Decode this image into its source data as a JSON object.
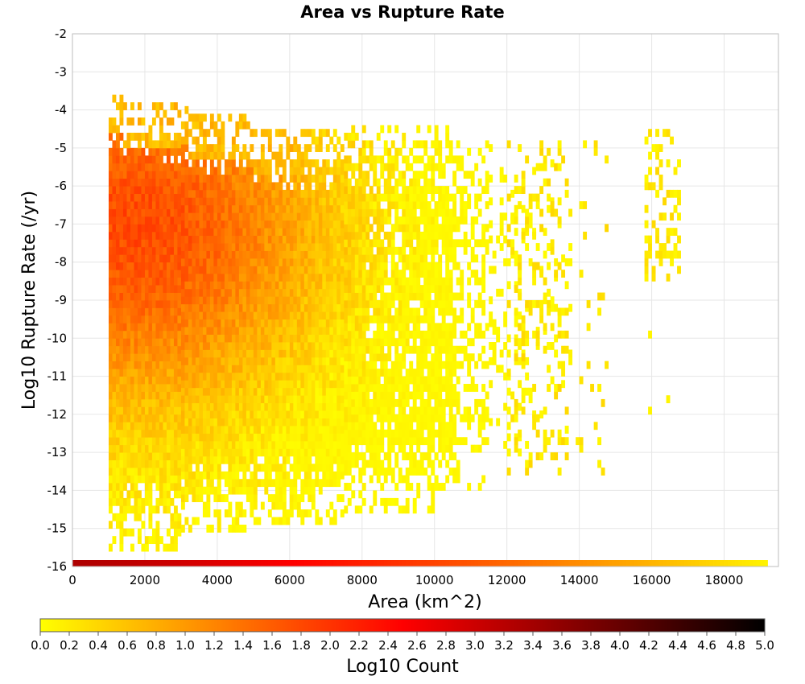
{
  "chart_data": {
    "type": "heatmap",
    "title": "Area vs Rupture Rate",
    "xlabel": "Area (km^2)",
    "ylabel": "Log10 Rupture Rate (/yr)",
    "xlim": [
      0,
      19500
    ],
    "ylim": [
      -16,
      -2
    ],
    "xticks": [
      "0",
      "2000",
      "4000",
      "6000",
      "8000",
      "10000",
      "12000",
      "14000",
      "16000",
      "18000"
    ],
    "yticks": [
      "-2",
      "-3",
      "-4",
      "-5",
      "-6",
      "-7",
      "-8",
      "-9",
      "-10",
      "-11",
      "-12",
      "-13",
      "-14",
      "-15",
      "-16"
    ],
    "grid": true,
    "colorbar": {
      "label": "Log10 Count",
      "range": [
        0,
        5
      ],
      "ticks": [
        "0.0",
        "0.2",
        "0.4",
        "0.6",
        "0.8",
        "1.0",
        "1.2",
        "1.4",
        "1.6",
        "1.8",
        "2.0",
        "2.2",
        "2.4",
        "2.6",
        "2.8",
        "3.0",
        "3.2",
        "3.4",
        "3.6",
        "3.8",
        "4.0",
        "4.2",
        "4.4",
        "4.6",
        "4.8",
        "5.0"
      ],
      "colors": [
        "#ffff00",
        "#ff8000",
        "#ff0000",
        "#800000",
        "#000000"
      ]
    },
    "bin_width_area": 100,
    "bin_height_log_rate": 0.2,
    "density_profile": {
      "area_range": [
        1000,
        19200
      ],
      "dense_area_max": 12000,
      "peak_area": 1800,
      "peak_log_rate": -7.2,
      "peak_log_count": 1.8,
      "scattered_clusters": [
        {
          "area_range": [
            15800,
            16800
          ],
          "log_rate_range": [
            -8.5,
            -4.5
          ]
        },
        {
          "area": 15900,
          "log_rate": -10.0
        },
        {
          "area": 16400,
          "log_rate": -11.7
        },
        {
          "area": 15900,
          "log_rate": -12.0
        }
      ],
      "bottom_row": {
        "log_rate": -16.0,
        "area_range": [
          0,
          19200
        ],
        "log_count_start": 3.3,
        "log_count_end": 0.1
      }
    }
  }
}
